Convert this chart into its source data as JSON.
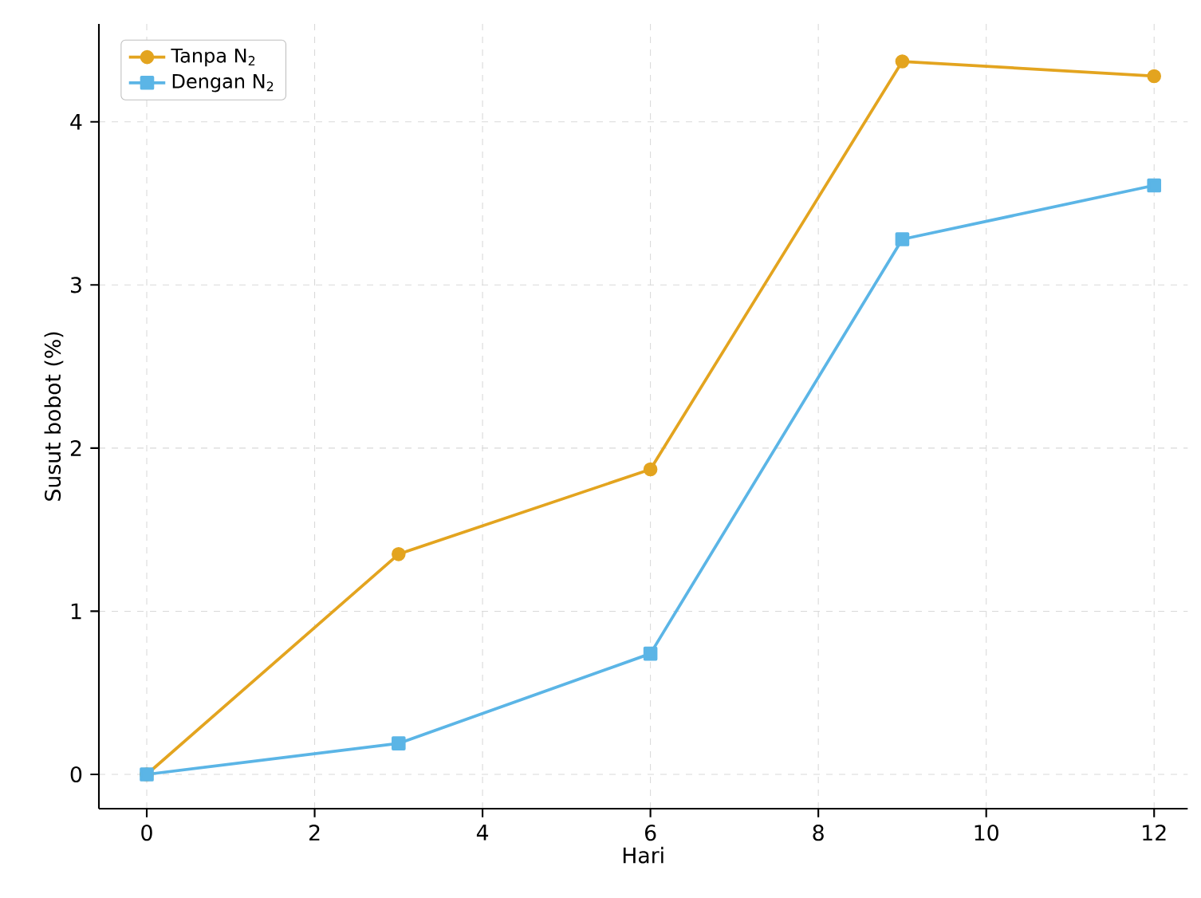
{
  "chart_data": {
    "type": "line",
    "xlabel": "Hari",
    "ylabel": "Susut bobot (%)",
    "x": [
      0,
      3,
      6,
      9,
      12
    ],
    "series": [
      {
        "name": "Tanpa N$_{2}$",
        "color": "#e3a41f",
        "marker": "circle",
        "values": [
          0,
          1.35,
          1.87,
          4.37,
          4.28
        ]
      },
      {
        "name": "Dengan N$_{2}$",
        "color": "#5bb5e6",
        "marker": "square",
        "values": [
          0,
          0.19,
          0.74,
          3.28,
          3.61
        ]
      }
    ],
    "xlim": [
      -0.57,
      12.4
    ],
    "ylim": [
      -0.21,
      4.6
    ],
    "xticks": [
      0,
      2,
      4,
      6,
      8,
      10,
      12
    ],
    "yticks": [
      0,
      1,
      2,
      3,
      4
    ],
    "grid": true,
    "legend": "top left",
    "line_style": "solid"
  }
}
